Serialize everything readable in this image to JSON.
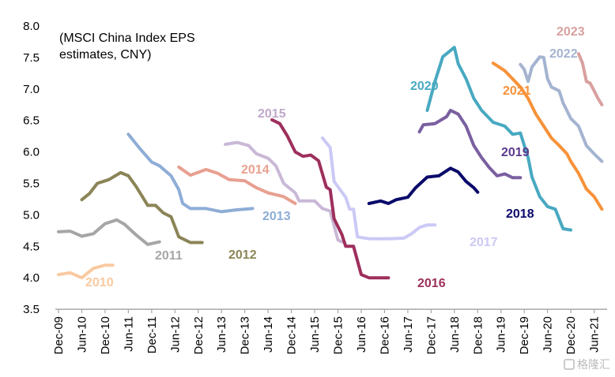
{
  "chart_data": {
    "type": "line",
    "title": "",
    "annotation": [
      "(MSCI China Index EPS",
      "estimates, CNY)"
    ],
    "xlabel": "",
    "ylabel": "",
    "ylim": [
      3.5,
      8.0
    ],
    "yticks": [
      "8.0",
      "7.5",
      "7.0",
      "6.5",
      "6.0",
      "5.5",
      "5.0",
      "4.5",
      "4.0",
      "3.5"
    ],
    "xlim": [
      "2009-12",
      "2021-09"
    ],
    "xticks": [
      "Dec-09",
      "Jun-10",
      "Dec-10",
      "Jun-11",
      "Dec-11",
      "Jun-12",
      "Dec-12",
      "Jun-13",
      "Dec-13",
      "Jun-14",
      "Dec-14",
      "Jun-15",
      "Dec-15",
      "Jun-16",
      "Dec-16",
      "Jun-17",
      "Dec-17",
      "Jun-18",
      "Dec-18",
      "Jun-19",
      "Dec-19",
      "Jun-20",
      "Dec-20",
      "Jun-21"
    ],
    "grid": false,
    "legend": "none (inline labels)",
    "series": [
      {
        "name": "2010",
        "color": "#F9C9A0",
        "label_color": "#F9C9A0",
        "points": [
          [
            "2009-12",
            4.05
          ],
          [
            "2010-03",
            4.08
          ],
          [
            "2010-06",
            4.0
          ],
          [
            "2010-09",
            4.15
          ],
          [
            "2010-12",
            4.2
          ],
          [
            "2011-02",
            4.2
          ]
        ]
      },
      {
        "name": "2011",
        "color": "#A6A6A6",
        "label_color": "#A6A6A6",
        "points": [
          [
            "2009-12",
            4.73
          ],
          [
            "2010-03",
            4.74
          ],
          [
            "2010-06",
            4.66
          ],
          [
            "2010-09",
            4.7
          ],
          [
            "2010-12",
            4.86
          ],
          [
            "2011-03",
            4.92
          ],
          [
            "2011-05",
            4.85
          ],
          [
            "2011-08",
            4.68
          ],
          [
            "2011-11",
            4.53
          ],
          [
            "2012-02",
            4.57
          ]
        ]
      },
      {
        "name": "2012",
        "color": "#8B8457",
        "label_color": "#8B8457",
        "points": [
          [
            "2010-06",
            5.24
          ],
          [
            "2010-08",
            5.34
          ],
          [
            "2010-10",
            5.5
          ],
          [
            "2011-01",
            5.56
          ],
          [
            "2011-04",
            5.67
          ],
          [
            "2011-06",
            5.62
          ],
          [
            "2011-08",
            5.45
          ],
          [
            "2011-11",
            5.15
          ],
          [
            "2012-01",
            5.15
          ],
          [
            "2012-03",
            5.03
          ],
          [
            "2012-05",
            4.97
          ],
          [
            "2012-07",
            4.65
          ],
          [
            "2012-10",
            4.56
          ],
          [
            "2013-01",
            4.56
          ]
        ]
      },
      {
        "name": "2013",
        "color": "#8EADD6",
        "label_color": "#8EADD6",
        "points": [
          [
            "2011-06",
            6.28
          ],
          [
            "2011-09",
            6.05
          ],
          [
            "2011-12",
            5.84
          ],
          [
            "2012-02",
            5.78
          ],
          [
            "2012-05",
            5.62
          ],
          [
            "2012-07",
            5.4
          ],
          [
            "2012-08",
            5.18
          ],
          [
            "2012-10",
            5.1
          ],
          [
            "2013-02",
            5.1
          ],
          [
            "2013-06",
            5.05
          ],
          [
            "2013-10",
            5.08
          ],
          [
            "2014-02",
            5.1
          ]
        ]
      },
      {
        "name": "2014",
        "color": "#E8A090",
        "label_color": "#E8A090",
        "points": [
          [
            "2012-07",
            5.76
          ],
          [
            "2012-10",
            5.63
          ],
          [
            "2013-02",
            5.72
          ],
          [
            "2013-05",
            5.66
          ],
          [
            "2013-08",
            5.56
          ],
          [
            "2013-12",
            5.54
          ],
          [
            "2014-03",
            5.43
          ],
          [
            "2014-06",
            5.35
          ],
          [
            "2014-10",
            5.29
          ],
          [
            "2015-01",
            5.18
          ]
        ]
      },
      {
        "name": "2015",
        "color": "#C9B8D6",
        "label_color": "#C0A8CC",
        "points": [
          [
            "2013-07",
            6.12
          ],
          [
            "2013-10",
            6.15
          ],
          [
            "2014-01",
            6.1
          ],
          [
            "2014-03",
            5.97
          ],
          [
            "2014-06",
            5.9
          ],
          [
            "2014-08",
            5.78
          ],
          [
            "2014-10",
            5.5
          ],
          [
            "2015-01",
            5.35
          ],
          [
            "2015-02",
            5.22
          ],
          [
            "2015-06",
            5.22
          ],
          [
            "2015-08",
            5.1
          ],
          [
            "2015-10",
            5.06
          ],
          [
            "2015-12",
            4.6
          ],
          [
            "2016-01",
            4.57
          ]
        ]
      },
      {
        "name": "2016",
        "color": "#9E2F5C",
        "label_color": "#9E2F5C",
        "points": [
          [
            "2014-07",
            6.51
          ],
          [
            "2014-09",
            6.45
          ],
          [
            "2014-11",
            6.25
          ],
          [
            "2015-01",
            6.0
          ],
          [
            "2015-03",
            5.93
          ],
          [
            "2015-05",
            5.95
          ],
          [
            "2015-07",
            5.86
          ],
          [
            "2015-09",
            5.44
          ],
          [
            "2015-10",
            5.4
          ],
          [
            "2015-11",
            4.94
          ],
          [
            "2016-01",
            4.69
          ],
          [
            "2016-02",
            4.5
          ],
          [
            "2016-04",
            4.5
          ],
          [
            "2016-06",
            4.05
          ],
          [
            "2016-08",
            4.0
          ],
          [
            "2017-01",
            4.0
          ]
        ]
      },
      {
        "name": "2017",
        "color": "#CBC9F5",
        "label_color": "#CBC9F5",
        "points": [
          [
            "2015-08",
            6.22
          ],
          [
            "2015-10",
            6.07
          ],
          [
            "2015-11",
            5.53
          ],
          [
            "2016-02",
            5.28
          ],
          [
            "2016-03",
            5.09
          ],
          [
            "2016-04",
            5.09
          ],
          [
            "2016-05",
            4.65
          ],
          [
            "2016-08",
            4.62
          ],
          [
            "2017-01",
            4.62
          ],
          [
            "2017-05",
            4.63
          ],
          [
            "2017-07",
            4.7
          ],
          [
            "2017-09",
            4.8
          ],
          [
            "2017-11",
            4.84
          ],
          [
            "2018-01",
            4.84
          ]
        ]
      },
      {
        "name": "2018",
        "color": "#0A0A6B",
        "label_color": "#0A0A6B",
        "points": [
          [
            "2016-08",
            5.18
          ],
          [
            "2016-11",
            5.22
          ],
          [
            "2017-01",
            5.18
          ],
          [
            "2017-03",
            5.24
          ],
          [
            "2017-06",
            5.28
          ],
          [
            "2017-08",
            5.43
          ],
          [
            "2017-11",
            5.6
          ],
          [
            "2018-02",
            5.62
          ],
          [
            "2018-05",
            5.74
          ],
          [
            "2018-07",
            5.68
          ],
          [
            "2018-09",
            5.53
          ],
          [
            "2018-11",
            5.43
          ],
          [
            "2018-12",
            5.36
          ]
        ]
      },
      {
        "name": "2019",
        "color": "#7A5FA0",
        "label_color": "#5B3A8C",
        "points": [
          [
            "2017-09",
            6.32
          ],
          [
            "2017-10",
            6.43
          ],
          [
            "2018-01",
            6.45
          ],
          [
            "2018-04",
            6.56
          ],
          [
            "2018-05",
            6.66
          ],
          [
            "2018-07",
            6.6
          ],
          [
            "2018-09",
            6.41
          ],
          [
            "2018-11",
            6.1
          ],
          [
            "2019-01",
            5.91
          ],
          [
            "2019-03",
            5.75
          ],
          [
            "2019-05",
            5.62
          ],
          [
            "2019-07",
            5.65
          ],
          [
            "2019-09",
            5.59
          ],
          [
            "2019-11",
            5.59
          ]
        ]
      },
      {
        "name": "2020",
        "color": "#48A9C1",
        "label_color": "#48A9C1",
        "points": [
          [
            "2017-11",
            6.66
          ],
          [
            "2018-01",
            7.12
          ],
          [
            "2018-03",
            7.51
          ],
          [
            "2018-04",
            7.56
          ],
          [
            "2018-06",
            7.66
          ],
          [
            "2018-07",
            7.4
          ],
          [
            "2018-09",
            7.16
          ],
          [
            "2018-11",
            6.85
          ],
          [
            "2019-01",
            6.66
          ],
          [
            "2019-04",
            6.47
          ],
          [
            "2019-07",
            6.41
          ],
          [
            "2019-09",
            6.28
          ],
          [
            "2019-11",
            6.3
          ],
          [
            "2020-01",
            5.91
          ],
          [
            "2020-02",
            5.6
          ],
          [
            "2020-04",
            5.29
          ],
          [
            "2020-06",
            5.13
          ],
          [
            "2020-08",
            5.09
          ],
          [
            "2020-10",
            4.78
          ],
          [
            "2020-12",
            4.76
          ]
        ]
      },
      {
        "name": "2021",
        "color": "#F7923A",
        "label_color": "#F7923A",
        "points": [
          [
            "2019-04",
            7.41
          ],
          [
            "2019-07",
            7.29
          ],
          [
            "2019-09",
            7.16
          ],
          [
            "2019-11",
            7.03
          ],
          [
            "2020-01",
            6.85
          ],
          [
            "2020-03",
            6.6
          ],
          [
            "2020-05",
            6.41
          ],
          [
            "2020-07",
            6.22
          ],
          [
            "2020-09",
            6.1
          ],
          [
            "2020-11",
            5.97
          ],
          [
            "2020-12",
            5.85
          ],
          [
            "2021-02",
            5.66
          ],
          [
            "2021-04",
            5.41
          ],
          [
            "2021-06",
            5.29
          ],
          [
            "2021-08",
            5.09
          ]
        ]
      },
      {
        "name": "2022",
        "color": "#A4B4D0",
        "label_color": "#A4B4D0",
        "points": [
          [
            "2019-11",
            7.39
          ],
          [
            "2019-12",
            7.31
          ],
          [
            "2020-01",
            7.12
          ],
          [
            "2020-02",
            7.35
          ],
          [
            "2020-04",
            7.51
          ],
          [
            "2020-05",
            7.5
          ],
          [
            "2020-06",
            7.16
          ],
          [
            "2020-07",
            7.03
          ],
          [
            "2020-09",
            6.97
          ],
          [
            "2020-10",
            6.78
          ],
          [
            "2020-12",
            6.53
          ],
          [
            "2021-02",
            6.41
          ],
          [
            "2021-04",
            6.1
          ],
          [
            "2021-06",
            5.97
          ],
          [
            "2021-07",
            5.91
          ],
          [
            "2021-08",
            5.85
          ]
        ]
      },
      {
        "name": "2023",
        "color": "#D9A09F",
        "label_color": "#D9A09F",
        "points": [
          [
            "2021-02",
            7.56
          ],
          [
            "2021-03",
            7.41
          ],
          [
            "2021-04",
            7.12
          ],
          [
            "2021-05",
            7.09
          ],
          [
            "2021-06",
            6.97
          ],
          [
            "2021-07",
            6.85
          ],
          [
            "2021-08",
            6.75
          ]
        ]
      }
    ]
  },
  "watermark": "格隆汇"
}
